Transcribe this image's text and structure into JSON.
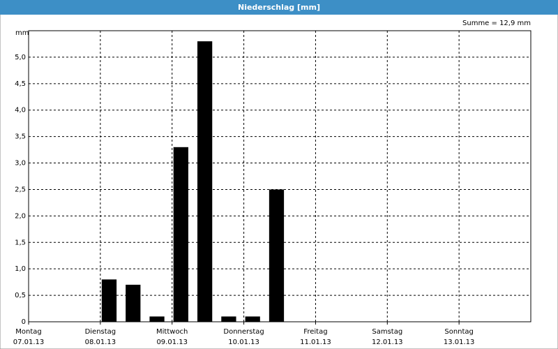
{
  "chart_data": {
    "type": "bar",
    "title": "Niederschlag [mm]",
    "summary": "Summe = 12,9 mm",
    "y_unit": "mm",
    "categories": [
      null,
      null,
      null,
      null,
      null,
      null,
      null,
      null,
      null,
      null,
      null,
      null,
      null,
      null,
      null,
      null,
      null,
      null,
      null,
      null,
      null
    ],
    "values": [
      0,
      0,
      0,
      0.8,
      0.7,
      0.1,
      3.3,
      5.3,
      0.1,
      0.1,
      2.5,
      null,
      null,
      null,
      null,
      null,
      null,
      null,
      null,
      null,
      null
    ],
    "color": "#000000",
    "day_labels": [
      {
        "day": "Montag",
        "date": "07.01.13"
      },
      {
        "day": "Dienstag",
        "date": "08.01.13"
      },
      {
        "day": "Mittwoch",
        "date": "09.01.13"
      },
      {
        "day": "Donnerstag",
        "date": "10.01.13"
      },
      {
        "day": "Freitag",
        "date": "11.01.13"
      },
      {
        "day": "Samstag",
        "date": "12.01.13"
      },
      {
        "day": "Sonntag",
        "date": "13.01.13"
      }
    ],
    "ylim": [
      0,
      5.5
    ],
    "yticks": [
      0,
      {
        "value": 0.5,
        "label": "0,5"
      },
      {
        "value": 1,
        "label": "1,0"
      },
      {
        "value": 1.5,
        "label": "1,5"
      },
      {
        "value": 2,
        "label": "2,0"
      },
      {
        "value": 2.5,
        "label": "2,5"
      },
      {
        "value": 3,
        "label": "3,0"
      },
      {
        "value": 3.5,
        "label": "3,5"
      },
      {
        "value": 4,
        "label": "4,0"
      },
      {
        "value": 4.5,
        "label": "4,5"
      },
      {
        "value": 5,
        "label": "5,0"
      }
    ],
    "grid": true
  }
}
